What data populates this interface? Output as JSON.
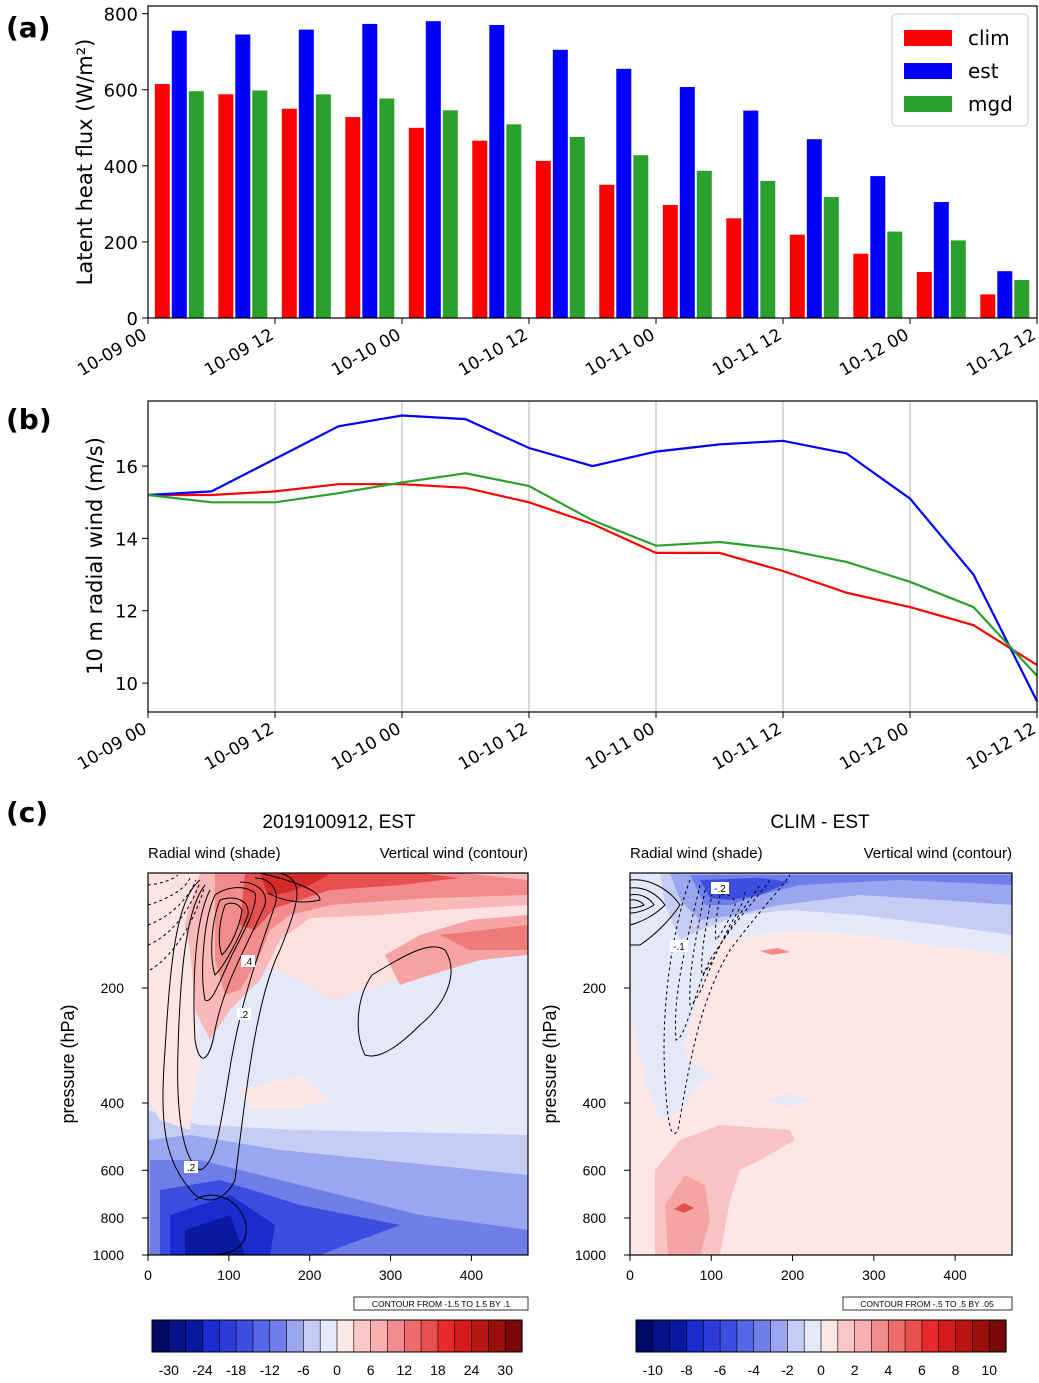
{
  "panel_labels": {
    "a": "(a)",
    "b": "(b)",
    "c": "(c)"
  },
  "colors": {
    "clim": "#ff0000",
    "est": "#0000ff",
    "mgd": "#2ca02c",
    "grid": "#b0b0b0"
  },
  "chart_data": [
    {
      "id": "a",
      "type": "bar",
      "title": "",
      "ylabel": "Latent heat flux (W/m²)",
      "xlabel": "",
      "ylim": [
        0,
        820
      ],
      "yticks": [
        0,
        200,
        400,
        600,
        800
      ],
      "xticks": [
        "10-09 00",
        "10-09 12",
        "10-10 00",
        "10-10 12",
        "10-11 00",
        "10-11 12",
        "10-12 00",
        "10-12 12"
      ],
      "legend_position": "top-right",
      "categories": [
        "10-09 03",
        "10-09 09",
        "10-09 15",
        "10-09 21",
        "10-10 03",
        "10-10 09",
        "10-10 15",
        "10-10 21",
        "10-11 03",
        "10-11 09",
        "10-11 15",
        "10-11 21",
        "10-12 03",
        "10-12 09"
      ],
      "series": [
        {
          "name": "clim",
          "values": [
            615,
            588,
            550,
            528,
            500,
            466,
            413,
            350,
            297,
            262,
            219,
            169,
            121,
            62
          ]
        },
        {
          "name": "est",
          "values": [
            755,
            745,
            758,
            773,
            780,
            770,
            705,
            655,
            607,
            545,
            470,
            373,
            305,
            123
          ]
        },
        {
          "name": "mgd",
          "values": [
            596,
            598,
            588,
            577,
            546,
            509,
            476,
            428,
            387,
            360,
            318,
            227,
            204,
            100
          ]
        }
      ]
    },
    {
      "id": "b",
      "type": "line",
      "title": "",
      "ylabel": "10 m radial wind (m/s)",
      "xlabel": "",
      "ylim": [
        9.2,
        17.8
      ],
      "yticks": [
        10,
        12,
        14,
        16
      ],
      "xlim_hours": [
        0,
        84
      ],
      "xticks": [
        "10-09 00",
        "10-09 12",
        "10-10 00",
        "10-10 12",
        "10-11 00",
        "10-11 12",
        "10-12 00",
        "10-12 12"
      ],
      "grid": "vertical",
      "x_hours": [
        0,
        6,
        12,
        18,
        24,
        30,
        36,
        42,
        48,
        54,
        60,
        66,
        72,
        78,
        84
      ],
      "series": [
        {
          "name": "clim",
          "values": [
            15.2,
            15.2,
            15.3,
            15.5,
            15.5,
            15.4,
            15.0,
            14.4,
            13.6,
            13.6,
            13.1,
            12.5,
            12.1,
            11.6,
            10.5
          ]
        },
        {
          "name": "est",
          "values": [
            15.2,
            15.3,
            16.2,
            17.1,
            17.4,
            17.3,
            16.5,
            16.0,
            16.4,
            16.6,
            16.7,
            16.35,
            15.1,
            13.0,
            9.5
          ]
        },
        {
          "name": "mgd",
          "values": [
            15.2,
            15.0,
            15.0,
            15.25,
            15.55,
            15.8,
            15.45,
            14.5,
            13.8,
            13.9,
            13.7,
            13.35,
            12.8,
            12.1,
            10.2
          ]
        }
      ]
    },
    {
      "id": "c-left",
      "type": "heatmap",
      "title": "2019100912, EST",
      "left_string": "Radial wind (shade)",
      "right_string": "Vertical wind (contour)",
      "xlabel": "",
      "ylabel": "pressure (hPa)",
      "xlim": [
        0,
        470
      ],
      "ylim": [
        100,
        1000
      ],
      "xticks": [
        0,
        100,
        200,
        300,
        400
      ],
      "yticks": [
        200,
        400,
        600,
        800,
        1000
      ],
      "contour_info": "CONTOUR FROM -1.5 TO 1.5 BY .1",
      "contour_labels": [
        ".4",
        ".2",
        ".2"
      ],
      "colorbar_ticks": [
        "-30",
        "-24",
        "-18",
        "-12",
        "-6",
        "0",
        "6",
        "12",
        "18",
        "24",
        "30"
      ]
    },
    {
      "id": "c-right",
      "type": "heatmap",
      "title": "CLIM - EST",
      "left_string": "Radial wind (shade)",
      "right_string": "Vertical wind (contour)",
      "xlabel": "",
      "ylabel": "pressure (hPa)",
      "xlim": [
        0,
        470
      ],
      "ylim": [
        100,
        1000
      ],
      "xticks": [
        0,
        100,
        200,
        300,
        400
      ],
      "yticks": [
        200,
        400,
        600,
        800,
        1000
      ],
      "contour_info": "CONTOUR FROM -.5 TO .5 BY .05",
      "contour_labels": [
        "-.2",
        "-.1"
      ],
      "colorbar_ticks": [
        "-10",
        "-8",
        "-6",
        "-4",
        "-2",
        "0",
        "2",
        "4",
        "6",
        "8",
        "10"
      ]
    }
  ]
}
